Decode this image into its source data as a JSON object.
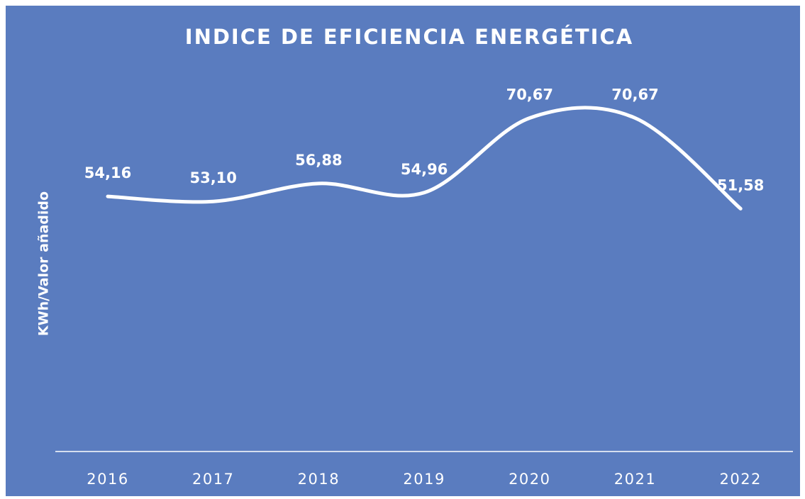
{
  "chart_data": {
    "type": "line",
    "title": "INDICE DE EFICIENCIA ENERGÉTICA",
    "y_label": "KWh/Valor añadido",
    "categories": [
      "2016",
      "2017",
      "2018",
      "2019",
      "2020",
      "2021",
      "2022"
    ],
    "values": [
      54.16,
      53.1,
      56.88,
      54.96,
      70.67,
      70.67,
      51.58
    ],
    "value_labels": [
      "54,16",
      "53,10",
      "56,88",
      "54,96",
      "70,67",
      "70,67",
      "51,58"
    ],
    "color": "#ffffff",
    "background": "#5a7cbf",
    "ylim": [
      0,
      80
    ],
    "smooth": true,
    "drop_lines": true
  }
}
